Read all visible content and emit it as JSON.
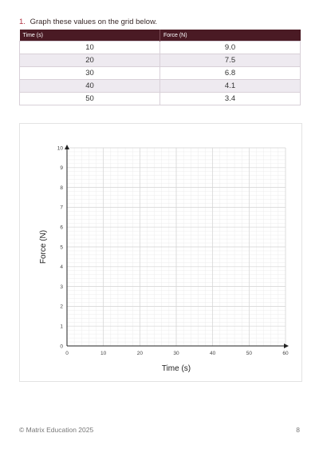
{
  "question": {
    "number": "1.",
    "text": "Graph these values on the grid below."
  },
  "table": {
    "headers": [
      "Time (s)",
      "Force (N)"
    ],
    "rows": [
      [
        "10",
        "9.0"
      ],
      [
        "20",
        "7.5"
      ],
      [
        "30",
        "6.8"
      ],
      [
        "40",
        "4.1"
      ],
      [
        "50",
        "3.4"
      ]
    ]
  },
  "chart_data": {
    "type": "scatter",
    "xlabel": "Time (s)",
    "ylabel": "Force (N)",
    "xlim": [
      0,
      60
    ],
    "ylim": [
      0,
      10
    ],
    "xticks": [
      0,
      10,
      20,
      30,
      40,
      50,
      60
    ],
    "yticks": [
      0,
      1,
      2,
      3,
      4,
      5,
      6,
      7,
      8,
      9,
      10
    ],
    "grid": true,
    "x": [],
    "y": []
  },
  "footer": {
    "copyright": "© Matrix Education 2025",
    "page": "8"
  }
}
